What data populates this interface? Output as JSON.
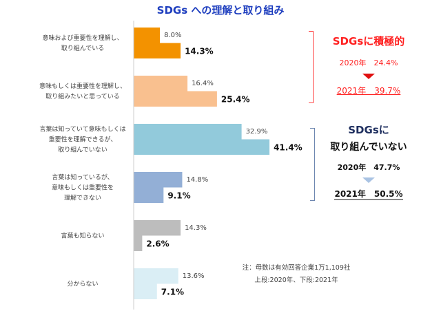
{
  "title": "SDGs への理解と取り組み",
  "chart_data": {
    "type": "bar",
    "orientation": "horizontal",
    "title": "SDGs への理解と取り組み",
    "categories": [
      [
        "意味および重要性を理解し、",
        "取り組んでいる"
      ],
      [
        "意味もしくは重要性を理解し、",
        "取り組みたいと思っている"
      ],
      [
        "言葉は知っていて意味もしくは",
        "重要性を理解できるが、",
        "取り組んでいない"
      ],
      [
        "言葉は知っているが、",
        "意味もしくは重要性を",
        "理解できない"
      ],
      [
        "言葉も知らない"
      ],
      [
        "分からない"
      ]
    ],
    "series": [
      {
        "name": "2020年",
        "values": [
          8.0,
          16.4,
          32.9,
          14.8,
          14.3,
          13.6
        ],
        "labels": [
          "8.0%",
          "16.4%",
          "32.9%",
          "14.8%",
          "14.3%",
          "13.6%"
        ]
      },
      {
        "name": "2021年",
        "values": [
          14.3,
          25.4,
          41.4,
          9.1,
          2.6,
          7.1
        ],
        "labels": [
          "14.3%",
          "25.4%",
          "41.4%",
          "9.1%",
          "2.6%",
          "7.1%"
        ]
      }
    ],
    "colors": [
      "#f39200",
      "#f9c08f",
      "#92cadb",
      "#93afd6",
      "#bdbdbd",
      "#daeef5"
    ],
    "xlim": [
      0,
      45
    ],
    "grid": false
  },
  "active": {
    "heading": "SDGsに積極的",
    "y2020": "2020年　24.4%",
    "y2021": "2021年　39.7%",
    "color": "#ff2020"
  },
  "inactive": {
    "heading1": "SDGsに",
    "heading2": "取り組んでいない",
    "y2020": "2020年　47.7%",
    "y2021": "2021年　50.5%",
    "color": "#1f2f5f"
  },
  "note": {
    "line1": "注：母数は有効回答企業1万1,109社",
    "line2": "上段:2020年、下段:2021年"
  }
}
